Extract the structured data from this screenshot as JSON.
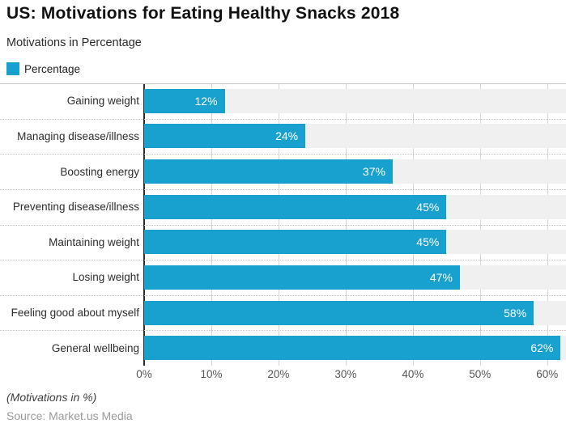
{
  "header": {
    "title": "US: Motivations for Eating Healthy Snacks 2018",
    "subtitle": "Motivations in Percentage"
  },
  "legend": {
    "label": "Percentage",
    "color": "#18a0ce"
  },
  "chart_data": {
    "type": "bar",
    "orientation": "horizontal",
    "title": "US: Motivations for Eating Healthy Snacks 2018",
    "subtitle": "Motivations in Percentage",
    "series_name": "Percentage",
    "categories": [
      "Gaining weight",
      "Managing disease/illness",
      "Boosting energy",
      "Preventing disease/illness",
      "Maintaining weight",
      "Losing weight",
      "Feeling good about myself",
      "General wellbeing"
    ],
    "values": [
      12,
      24,
      37,
      45,
      45,
      47,
      58,
      62
    ],
    "value_labels": [
      "12%",
      "24%",
      "37%",
      "45%",
      "45%",
      "47%",
      "58%",
      "62%"
    ],
    "xlabel": "",
    "ylabel": "",
    "x_ticks": [
      "0%",
      "10%",
      "20%",
      "30%",
      "40%",
      "50%",
      "60%"
    ],
    "x_tick_values": [
      0,
      10,
      20,
      30,
      40,
      50,
      60
    ],
    "xlim": [
      0,
      62.8
    ],
    "grid": true,
    "legend_position": "top-left",
    "bar_color": "#18a0ce",
    "row_band_color": "#f0f0f0",
    "value_label_color": "#ffffff"
  },
  "footer": {
    "note": "(Motivations in %)",
    "source": "Source: Market.us Media"
  }
}
